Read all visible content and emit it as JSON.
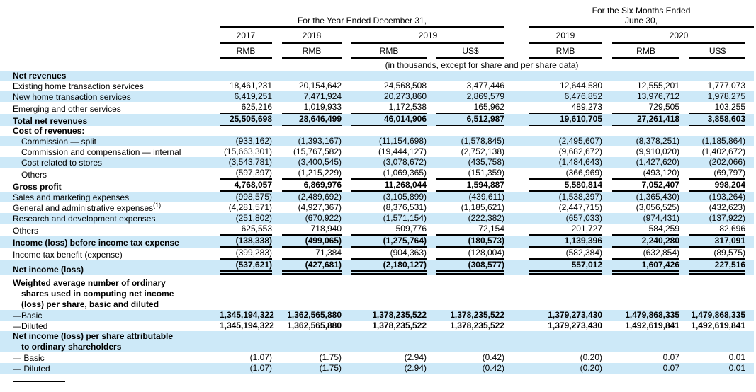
{
  "header": {
    "year_group": {
      "title": "For the Year Ended December 31,"
    },
    "six_month_group": {
      "title_line1": "For the Six Months Ended",
      "title_line2": "June 30,"
    },
    "year_columns": [
      {
        "label": "2017"
      },
      {
        "label": "2018"
      },
      {
        "label": "2019"
      },
      {
        "label": "2019"
      },
      {
        "label": "2020"
      }
    ],
    "currency_columns": [
      "RMB",
      "RMB",
      "RMB",
      "US$",
      "RMB",
      "RMB",
      "US$"
    ],
    "units_note": "(in thousands, except for share and per share data)"
  },
  "table": {
    "rows": [
      {
        "label": "Net revenues",
        "b": 1,
        "hl": 1,
        "values": [
          "",
          "",
          "",
          "",
          "",
          "",
          ""
        ]
      },
      {
        "label": "Existing home transaction services",
        "values": [
          "18,461,231",
          "20,154,642",
          "24,568,508",
          "3,477,446",
          "12,644,580",
          "12,555,201",
          "1,777,073"
        ]
      },
      {
        "label": "New home transaction services",
        "hl": 1,
        "values": [
          "6,419,251",
          "7,471,924",
          "20,273,860",
          "2,869,579",
          "6,476,852",
          "13,976,712",
          "1,978,275"
        ]
      },
      {
        "label": "Emerging and other services",
        "rule": "single",
        "values": [
          "625,216",
          "1,019,933",
          "1,172,538",
          "165,962",
          "489,273",
          "729,505",
          "103,255"
        ]
      },
      {
        "label": "Total net revenues",
        "b": 1,
        "vb": 1,
        "hl": 1,
        "rule": "single",
        "values": [
          "25,505,698",
          "28,646,499",
          "46,014,906",
          "6,512,987",
          "19,610,705",
          "27,261,418",
          "3,858,603"
        ]
      },
      {
        "label": "Cost of revenues:",
        "b": 1,
        "values": [
          "",
          "",
          "",
          "",
          "",
          "",
          ""
        ]
      },
      {
        "label": "Commission — split",
        "ind": 1,
        "hl": 1,
        "values": [
          "(933,162)",
          "(1,393,167)",
          "(11,154,698)",
          "(1,578,845)",
          "(2,495,607)",
          "(8,378,251)",
          "(1,185,864)"
        ]
      },
      {
        "label": "Commission and compensation — internal",
        "ind": 1,
        "values": [
          "(15,663,301)",
          "(15,767,582)",
          "(19,444,127)",
          "(2,752,138)",
          "(9,682,672)",
          "(9,910,020)",
          "(1,402,672)"
        ]
      },
      {
        "label": "Cost related to stores",
        "ind": 1,
        "hl": 1,
        "values": [
          "(3,543,781)",
          "(3,400,545)",
          "(3,078,672)",
          "(435,758)",
          "(1,484,643)",
          "(1,427,620)",
          "(202,066)"
        ]
      },
      {
        "label": "Others",
        "ind": 1,
        "rule": "single",
        "values": [
          "(597,397)",
          "(1,215,229)",
          "(1,069,365)",
          "(151,359)",
          "(366,969)",
          "(493,120)",
          "(69,797)"
        ]
      },
      {
        "label": "Gross profit",
        "b": 1,
        "vb": 1,
        "rule": "single",
        "values": [
          "4,768,057",
          "6,869,976",
          "11,268,044",
          "1,594,887",
          "5,580,814",
          "7,052,407",
          "998,204"
        ]
      },
      {
        "label": "Sales and marketing expenses",
        "hl": 1,
        "values": [
          "(998,575)",
          "(2,489,692)",
          "(3,105,899)",
          "(439,611)",
          "(1,538,397)",
          "(1,365,430)",
          "(193,264)"
        ]
      },
      {
        "label": "General and administrative expenses",
        "sup": "(1)",
        "values": [
          "(4,281,571)",
          "(4,927,367)",
          "(8,376,531)",
          "(1,185,621)",
          "(2,447,715)",
          "(3,056,525)",
          "(432,623)"
        ]
      },
      {
        "label": "Research and development expenses",
        "hl": 1,
        "values": [
          "(251,802)",
          "(670,922)",
          "(1,571,154)",
          "(222,382)",
          "(657,033)",
          "(974,431)",
          "(137,922)"
        ]
      },
      {
        "label": "Others",
        "rule": "single",
        "values": [
          "625,553",
          "718,940",
          "509,776",
          "72,154",
          "201,727",
          "584,259",
          "82,696"
        ]
      },
      {
        "label": "Income (loss) before income tax expense",
        "b": 1,
        "vb": 1,
        "hl": 1,
        "rule": "single",
        "values": [
          "(138,338)",
          "(499,065)",
          "(1,275,764)",
          "(180,573)",
          "1,139,396",
          "2,240,280",
          "317,091"
        ]
      },
      {
        "label": "Income tax benefit (expense)",
        "rule": "single",
        "values": [
          "(399,283)",
          "71,384",
          "(904,363)",
          "(128,004)",
          "(582,384)",
          "(632,854)",
          "(89,575)"
        ]
      },
      {
        "label": "Net income (loss)",
        "b": 1,
        "vb": 1,
        "hl": 1,
        "rule": "double",
        "values": [
          "(537,621)",
          "(427,681)",
          "(2,180,127)",
          "(308,577)",
          "557,012",
          "1,607,426",
          "227,516"
        ]
      },
      {
        "label_lines": [
          "Weighted average number of ordinary",
          "shares used in computing net income",
          "(loss) per share, basic and diluted"
        ],
        "b": 1,
        "mt": 1,
        "values": [
          "",
          "",
          "",
          "",
          "",
          "",
          ""
        ]
      },
      {
        "label": "—Basic",
        "hl": 1,
        "vb": 1,
        "values": [
          "1,345,194,322",
          "1,362,565,880",
          "1,378,235,522",
          "1,378,235,522",
          "1,379,273,430",
          "1,479,868,335",
          "1,479,868,335"
        ]
      },
      {
        "label": "—Diluted",
        "vb": 1,
        "values": [
          "1,345,194,322",
          "1,362,565,880",
          "1,378,235,522",
          "1,378,235,522",
          "1,379,273,430",
          "1,492,619,841",
          "1,492,619,841"
        ]
      },
      {
        "label_lines": [
          "Net income (loss) per share attributable",
          "to ordinary shareholders"
        ],
        "b": 1,
        "hl": 1,
        "values": [
          "",
          "",
          "",
          "",
          "",
          "",
          ""
        ]
      },
      {
        "label": "— Basic",
        "values": [
          "(1.07)",
          "(1.75)",
          "(2.94)",
          "(0.42)",
          "(0.20)",
          "0.07",
          "0.01"
        ]
      },
      {
        "label": "— Diluted",
        "hl": 1,
        "values": [
          "(1.07)",
          "(1.75)",
          "(2.94)",
          "(0.42)",
          "(0.20)",
          "0.07",
          "0.01"
        ]
      }
    ]
  },
  "colors": {
    "highlight": "#cde9f8",
    "text": "#000000",
    "rule": "#000000"
  }
}
